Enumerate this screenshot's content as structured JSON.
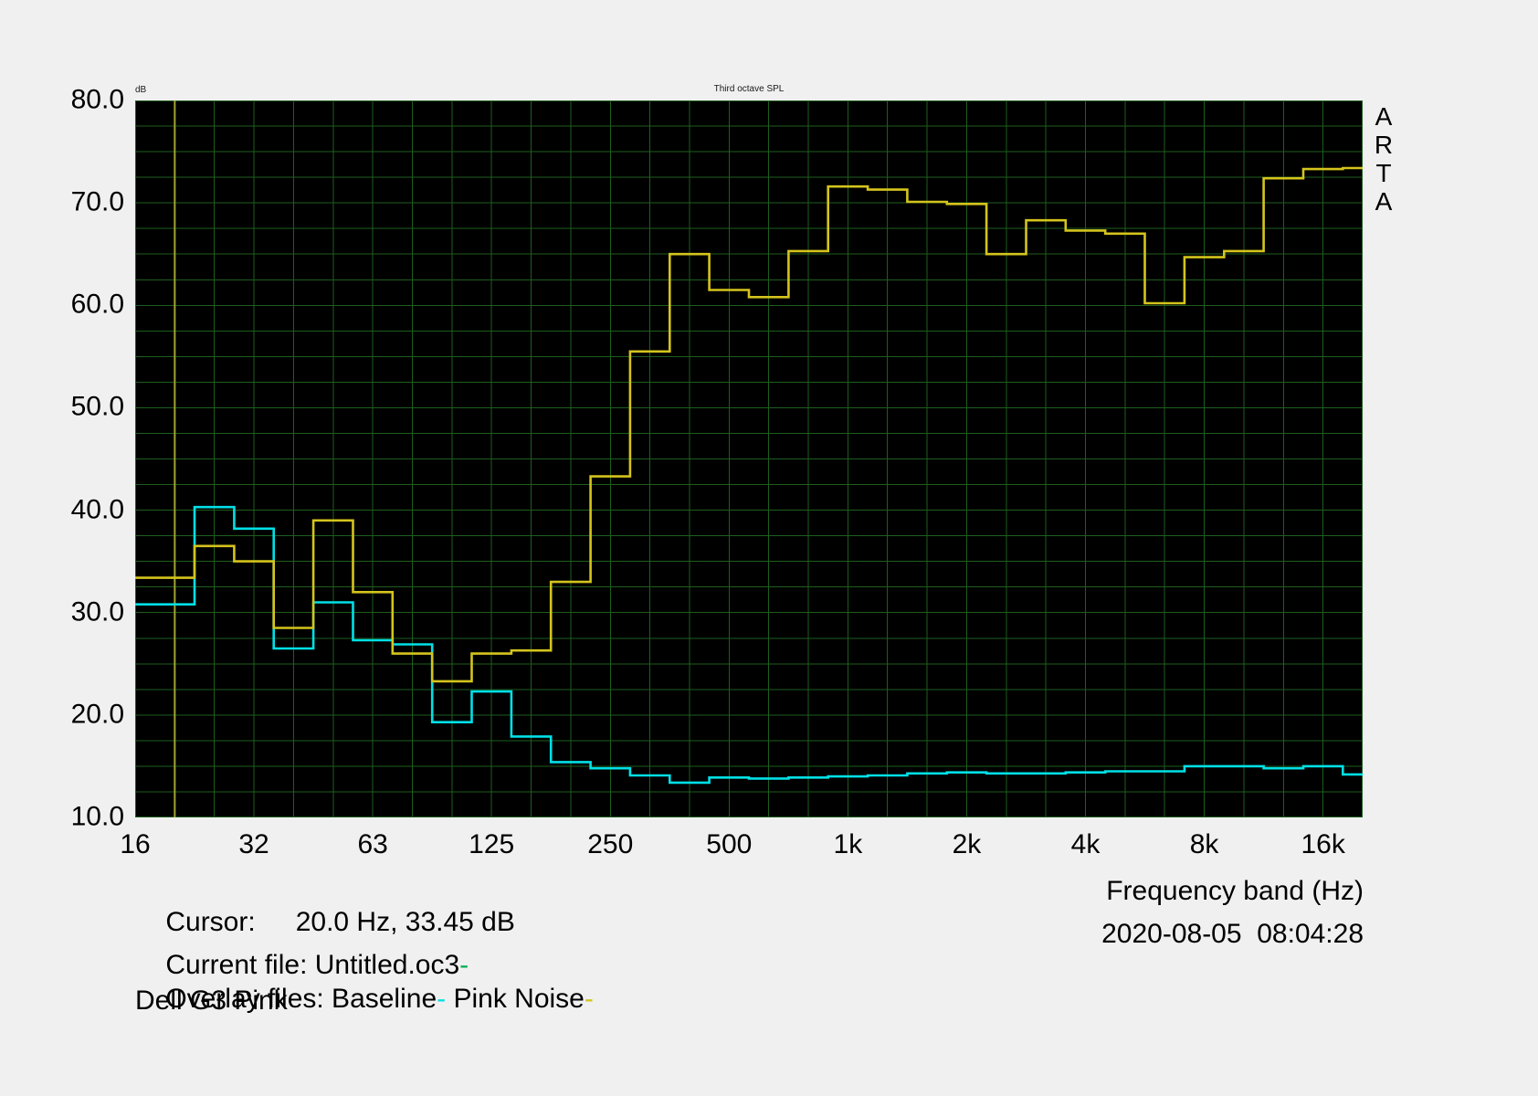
{
  "header": {
    "db_unit": "dB",
    "title": "Third octave SPL"
  },
  "brand": {
    "letters": [
      "A",
      "R",
      "T",
      "A"
    ]
  },
  "axes": {
    "y_ticks": [
      "80.0",
      "70.0",
      "60.0",
      "50.0",
      "40.0",
      "30.0",
      "20.0",
      "10.0"
    ],
    "x_ticks": [
      "16",
      "32",
      "63",
      "125",
      "250",
      "500",
      "1k",
      "2k",
      "4k",
      "8k",
      "16k"
    ]
  },
  "footer": {
    "cursor_label": "Cursor:",
    "cursor_value": "20.0 Hz, 33.45 dB",
    "x_axis_label": "Frequency band (Hz)",
    "current_file_label": "Current file: Untitled.oc3",
    "current_file_dash": "-",
    "datetime": "2020-08-05  08:04:28",
    "overlay_label": "Overlay files: Baseline",
    "overlay_baseline_dash": "-",
    "overlay_pink_noise": " Pink Noise",
    "overlay_pink_noise_dash": "-",
    "overlay_wrap": "Dell G3 Pink"
  },
  "colors": {
    "background": "#f0f0f0",
    "plot_background": "#000000",
    "grid": "#1e5e1e",
    "cursor_line": "#a0a430",
    "baseline_series": "#00e0e6",
    "pink_noise_series": "#d4c41c",
    "current_file_dash": "#00b050",
    "text": "#000000"
  },
  "chart_data": {
    "type": "line",
    "style": "step",
    "title": "Third octave SPL",
    "ylabel": "dB",
    "xlabel": "Frequency band (Hz)",
    "ylim": [
      10,
      80
    ],
    "y_major_step": 10,
    "y_minor_step": 2.5,
    "x_scale": "third-octave-bands",
    "grid": true,
    "legend_position": "none",
    "x_bands": [
      16,
      20,
      25,
      31.5,
      40,
      50,
      63,
      80,
      100,
      125,
      160,
      200,
      250,
      315,
      400,
      500,
      630,
      800,
      1000,
      1250,
      1600,
      2000,
      2500,
      3150,
      4000,
      5000,
      6300,
      8000,
      10000,
      12500,
      16000,
      20000
    ],
    "series": [
      {
        "name": "Baseline",
        "color": "#00e0e6",
        "values": [
          30.8,
          30.8,
          40.3,
          38.2,
          26.5,
          31.0,
          27.3,
          26.9,
          19.3,
          22.3,
          17.9,
          15.4,
          14.8,
          14.1,
          13.4,
          13.9,
          13.8,
          13.9,
          14.0,
          14.1,
          14.3,
          14.4,
          14.3,
          14.3,
          14.4,
          14.5,
          14.5,
          15.0,
          15.0,
          14.8,
          15.0,
          14.2
        ]
      },
      {
        "name": "Pink Noise",
        "color": "#d4c41c",
        "values": [
          33.4,
          33.4,
          36.5,
          35.0,
          28.5,
          39.0,
          32.0,
          26.0,
          23.3,
          26.0,
          26.3,
          33.0,
          43.3,
          55.5,
          65.0,
          61.5,
          60.8,
          65.3,
          71.6,
          71.3,
          70.1,
          69.9,
          65.0,
          68.3,
          67.3,
          67.0,
          60.2,
          64.7,
          65.3,
          72.4,
          73.3,
          73.4
        ]
      }
    ],
    "cursor": {
      "freq_hz": 20,
      "db": 33.45
    }
  }
}
